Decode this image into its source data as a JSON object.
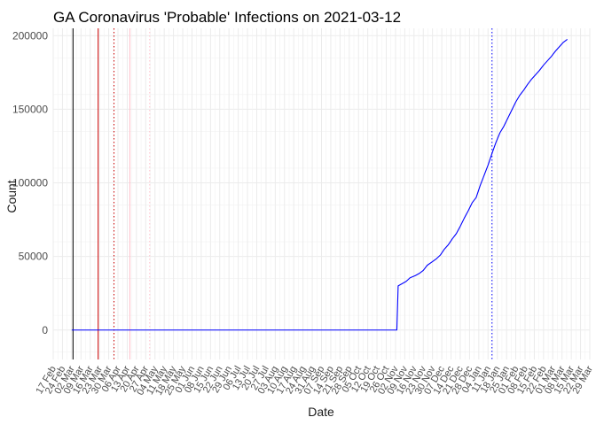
{
  "chart_data": {
    "type": "line",
    "title": "GA Coronavirus 'Probable' Infections on 2021-03-12",
    "xlabel": "Date",
    "ylabel": "Count",
    "ylim": [
      -20000,
      205000
    ],
    "xlim": [
      "2020-02-17",
      "2021-03-29"
    ],
    "yticks": [
      0,
      50000,
      100000,
      150000,
      200000
    ],
    "ytick_labels": [
      "0",
      "50000",
      "100000",
      "150000",
      "200000"
    ],
    "xtick_labels": [
      "17 Feb",
      "24 Feb",
      "02 Mar",
      "09 Mar",
      "16 Mar",
      "23 Mar",
      "30 Mar",
      "06 Apr",
      "13 Apr",
      "20 Apr",
      "27 Apr",
      "04 May",
      "11 May",
      "18 May",
      "25 May",
      "01 Jun",
      "08 Jun",
      "15 Jun",
      "22 Jun",
      "29 Jun",
      "06 Jul",
      "13 Jul",
      "20 Jul",
      "27 Jul",
      "03 Aug",
      "10 Aug",
      "17 Aug",
      "24 Aug",
      "31 Aug",
      "07 Sep",
      "14 Sep",
      "21 Sep",
      "28 Sep",
      "05 Oct",
      "12 Oct",
      "19 Oct",
      "26 Oct",
      "02 Nov",
      "09 Nov",
      "16 Nov",
      "23 Nov",
      "30 Nov",
      "07 Dec",
      "14 Dec",
      "21 Dec",
      "28 Dec",
      "04 Jan",
      "11 Jan",
      "18 Jan",
      "25 Jan",
      "01 Feb",
      "08 Feb",
      "15 Feb",
      "22 Feb",
      "01 Mar",
      "08 Mar",
      "15 Mar",
      "22 Mar",
      "29 Mar"
    ],
    "grid": true,
    "series": [
      {
        "color": "#0000ff",
        "points": [
          [
            "2020-03-02",
            0
          ],
          [
            "2020-11-03",
            0
          ],
          [
            "2020-11-04",
            30000
          ],
          [
            "2020-11-07",
            31500
          ],
          [
            "2020-11-10",
            33000
          ],
          [
            "2020-11-13",
            35500
          ],
          [
            "2020-11-17",
            37000
          ],
          [
            "2020-11-20",
            38500
          ],
          [
            "2020-11-23",
            40500
          ],
          [
            "2020-11-26",
            44000
          ],
          [
            "2020-11-30",
            46500
          ],
          [
            "2020-12-03",
            48500
          ],
          [
            "2020-12-06",
            51000
          ],
          [
            "2020-12-09",
            55000
          ],
          [
            "2020-12-12",
            58000
          ],
          [
            "2020-12-15",
            62000
          ],
          [
            "2020-12-18",
            65500
          ],
          [
            "2020-12-21",
            70500
          ],
          [
            "2020-12-24",
            76000
          ],
          [
            "2020-12-27",
            81000
          ],
          [
            "2020-12-30",
            86500
          ],
          [
            "2021-01-02",
            90000
          ],
          [
            "2021-01-05",
            98000
          ],
          [
            "2021-01-08",
            105000
          ],
          [
            "2021-01-11",
            112000
          ],
          [
            "2021-01-14",
            120000
          ],
          [
            "2021-01-17",
            127500
          ],
          [
            "2021-01-20",
            134000
          ],
          [
            "2021-01-23",
            138500
          ],
          [
            "2021-01-26",
            144000
          ],
          [
            "2021-01-29",
            149500
          ],
          [
            "2021-02-01",
            155000
          ],
          [
            "2021-02-04",
            159500
          ],
          [
            "2021-02-07",
            163000
          ],
          [
            "2021-02-10",
            167000
          ],
          [
            "2021-02-13",
            170500
          ],
          [
            "2021-02-16",
            173500
          ],
          [
            "2021-02-19",
            176500
          ],
          [
            "2021-02-22",
            180000
          ],
          [
            "2021-02-25",
            183000
          ],
          [
            "2021-02-28",
            186000
          ],
          [
            "2021-03-03",
            189500
          ],
          [
            "2021-03-06",
            192500
          ],
          [
            "2021-03-09",
            195500
          ],
          [
            "2021-03-12",
            197500
          ]
        ]
      }
    ],
    "vlines": [
      {
        "x": "2020-03-03",
        "color": "#000000",
        "style": "solid"
      },
      {
        "x": "2020-03-22",
        "color": "#cc0000",
        "style": "solid"
      },
      {
        "x": "2020-04-03",
        "color": "#cc0000",
        "style": "dotted"
      },
      {
        "x": "2020-04-15",
        "color": "#ffc0cb",
        "style": "solid"
      },
      {
        "x": "2020-04-30",
        "color": "#ffc0cb",
        "style": "dotted"
      },
      {
        "x": "2021-01-14",
        "color": "#0000ff",
        "style": "dotted"
      }
    ]
  }
}
